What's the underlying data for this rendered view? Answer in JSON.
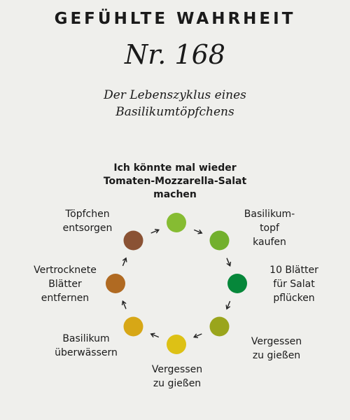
{
  "header": "GEFÜHLTE WAHRHEIT",
  "number": "Nr. 168",
  "subtitle_line1": "Der Lebenszyklus eines",
  "subtitle_line2": "Basilikumtöpfchens",
  "cycle": {
    "top_label": [
      "Ich könnte mal wieder",
      "Tomaten-Mozzarella-Salat",
      "machen"
    ],
    "stages": [
      {
        "lines": [
          "Basilikum-",
          "topf",
          "kaufen"
        ],
        "color": "#72b02d"
      },
      {
        "lines": [
          "10 Blätter",
          "für Salat",
          "pflücken"
        ],
        "color": "#06873a"
      },
      {
        "lines": [
          "Vergessen",
          "zu gießen"
        ],
        "color": "#9aa51c"
      },
      {
        "lines": [
          "Vergessen",
          "zu gießen"
        ],
        "color": "#ddc115"
      },
      {
        "lines": [
          "Basilikum",
          "überwässern"
        ],
        "color": "#d7a716"
      },
      {
        "lines": [
          "Vertrocknete",
          "Blätter",
          "entfernen"
        ],
        "color": "#b06a22"
      },
      {
        "lines": [
          "Töpfchen",
          "entsorgen"
        ],
        "color": "#8a5234"
      }
    ],
    "top_node_color": "#86bc32"
  }
}
